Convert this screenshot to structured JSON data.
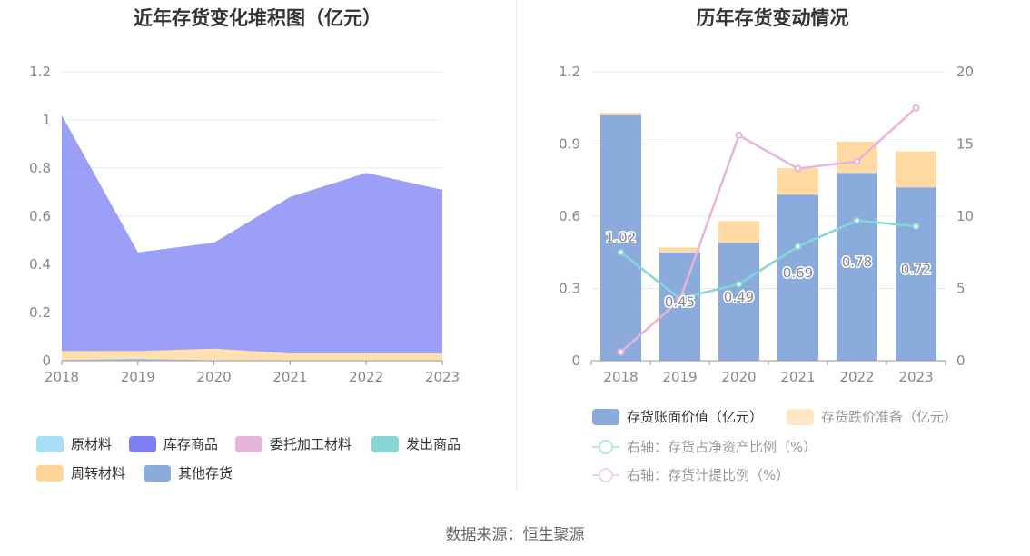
{
  "left_chart": {
    "title": "近年存货变化堆积图（亿元）",
    "legend": [
      {
        "name": "原材料",
        "color": "#a6def7"
      },
      {
        "name": "库存商品",
        "color": "#7b7ff3"
      },
      {
        "name": "委托加工材料",
        "color": "#e7b5dc"
      },
      {
        "name": "发出商品",
        "color": "#86d6d8"
      },
      {
        "name": "周转材料",
        "color": "#ffd699"
      },
      {
        "name": "其他存货",
        "color": "#8aabdc"
      }
    ]
  },
  "right_chart": {
    "title": "历年存货变动情况",
    "legend": [
      {
        "name": "存货账面价值（亿元）",
        "color": "#8aabdc",
        "kind": "bar"
      },
      {
        "name": "存货跌价准备（亿元）",
        "color": "#ffe7c6",
        "kind": "bar"
      },
      {
        "name": "右轴：存货占净资产比例（%）",
        "color": "#86d6d8",
        "kind": "line"
      },
      {
        "name": "右轴：存货计提比例（%）",
        "color": "#e7b5dc",
        "kind": "line"
      }
    ]
  },
  "source": "数据来源：恒生聚源",
  "chart_data": [
    {
      "type": "area",
      "stacked": true,
      "title": "近年存货变化堆积图（亿元）",
      "x": [
        "2018",
        "2019",
        "2020",
        "2021",
        "2022",
        "2023"
      ],
      "ylim": [
        0,
        1.2
      ],
      "yticks": [
        "0",
        "0.2",
        "0.4",
        "0.6",
        "0.8",
        "1",
        "1.2"
      ],
      "series": [
        {
          "name": "原材料",
          "color": "#a6def7",
          "values": [
            0,
            0,
            0,
            0,
            0,
            0
          ]
        },
        {
          "name": "委托加工材料",
          "color": "#e7b5dc",
          "values": [
            0,
            0,
            0,
            0,
            0,
            0
          ]
        },
        {
          "name": "发出商品",
          "color": "#86d6d8",
          "values": [
            0,
            0,
            0,
            0,
            0,
            0
          ]
        },
        {
          "name": "其他存货",
          "color": "#8aabdc",
          "values": [
            0.003,
            0.008,
            0.002,
            0,
            0,
            0
          ]
        },
        {
          "name": "周转材料",
          "color": "#ffd699",
          "values": [
            0.037,
            0.032,
            0.048,
            0.03,
            0.03,
            0.03
          ]
        },
        {
          "name": "库存商品",
          "color": "#7b7ff3",
          "values": [
            0.98,
            0.41,
            0.44,
            0.65,
            0.75,
            0.68
          ]
        }
      ],
      "grid": true,
      "legend_position": "bottom"
    },
    {
      "type": "bar",
      "stacked": true,
      "title": "历年存货变动情况",
      "categories": [
        "2018",
        "2019",
        "2020",
        "2021",
        "2022",
        "2023"
      ],
      "ylim": [
        0,
        1.2
      ],
      "yticks": [
        "0",
        "0.3",
        "0.6",
        "0.9",
        "1.2"
      ],
      "y2lim": [
        0,
        20
      ],
      "y2ticks": [
        "0",
        "5",
        "10",
        "15",
        "20"
      ],
      "series": [
        {
          "name": "存货账面价值（亿元）",
          "color": "#8aabdc",
          "values": [
            1.02,
            0.45,
            0.49,
            0.69,
            0.78,
            0.72
          ],
          "labels": [
            "1.02",
            "0.45",
            "0.49",
            "0.69",
            "0.78",
            "0.72"
          ]
        },
        {
          "name": "存货跌价准备（亿元）",
          "color": "#ffd699",
          "values": [
            0.01,
            0.02,
            0.09,
            0.11,
            0.13,
            0.15
          ]
        }
      ],
      "lines": [
        {
          "name": "右轴：存货占净资产比例（%）",
          "color": "#86d6d8",
          "axis": "right",
          "values": [
            7.5,
            4.3,
            5.3,
            7.9,
            9.7,
            9.3
          ]
        },
        {
          "name": "右轴：存货计提比例（%）",
          "color": "#e7b5dc",
          "axis": "right",
          "values": [
            0.6,
            4.2,
            15.6,
            13.3,
            13.8,
            17.5
          ]
        }
      ],
      "grid": true,
      "legend_position": "bottom"
    }
  ]
}
